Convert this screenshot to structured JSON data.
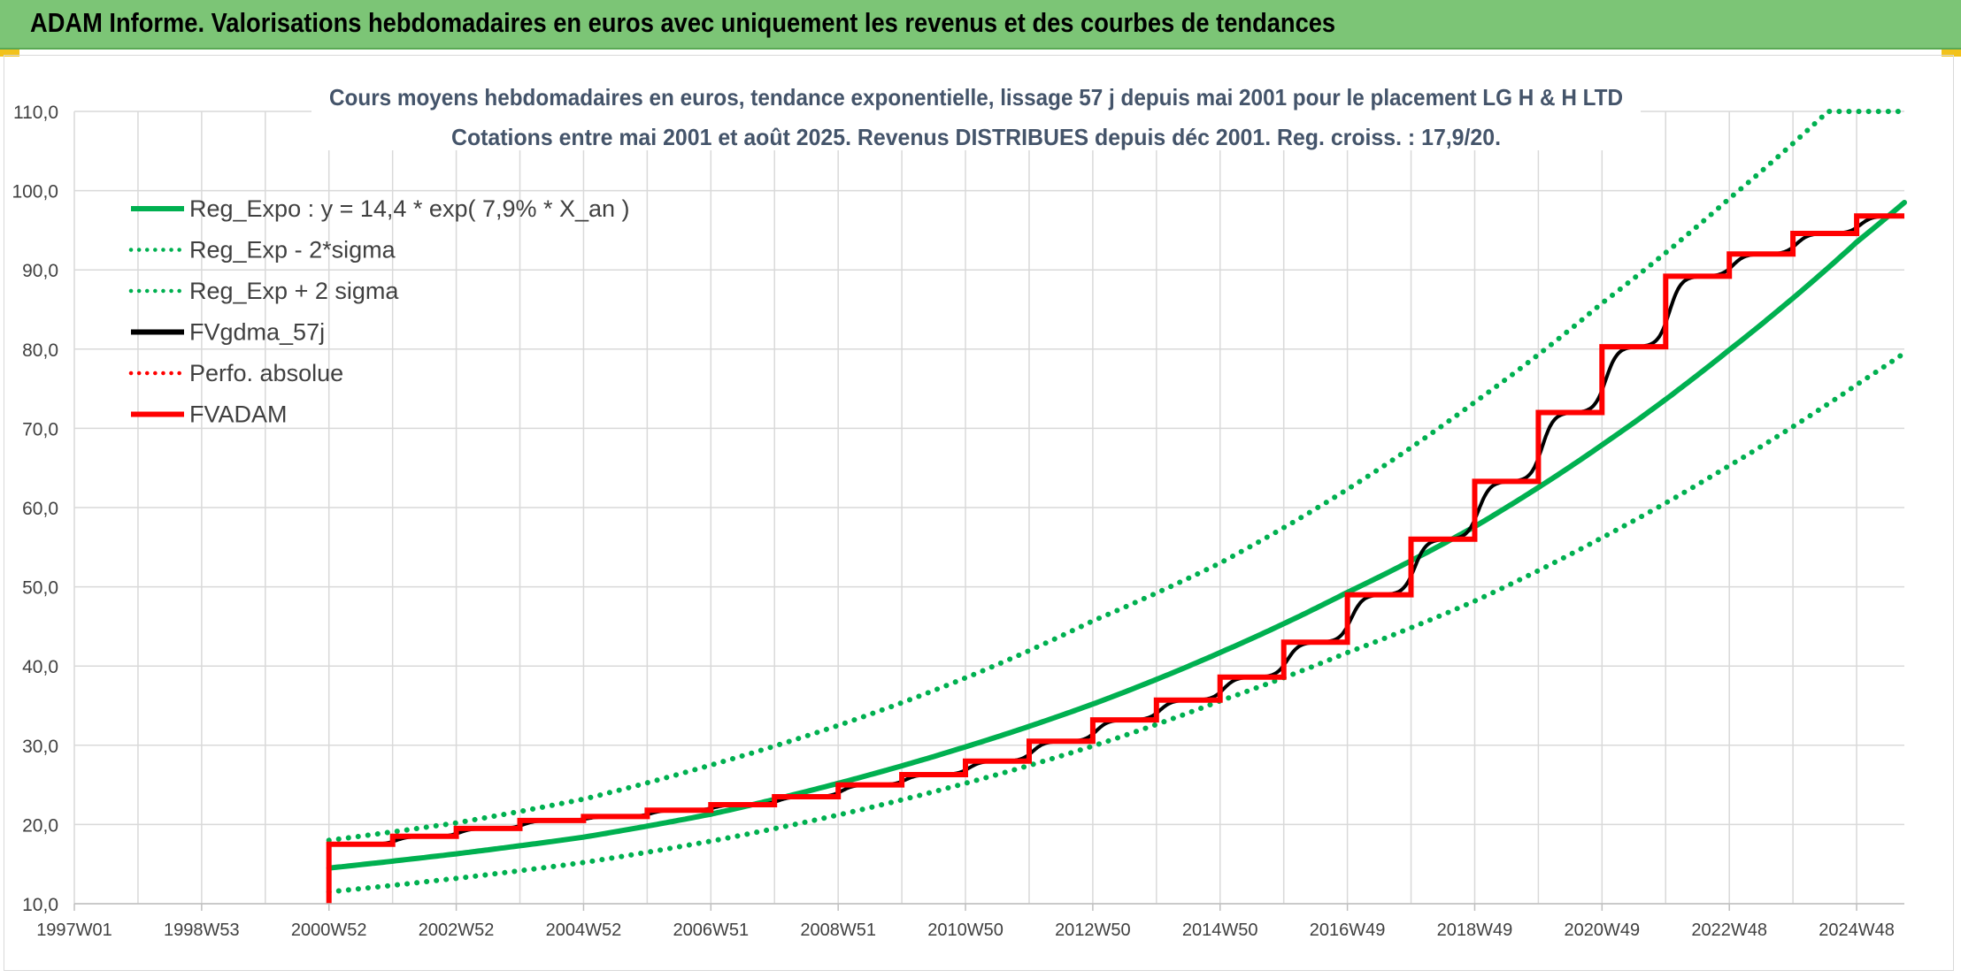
{
  "banner": {
    "title": "ADAM Informe. Valorisations hebdomadaires en euros avec uniquement les revenus et des courbes de tendances"
  },
  "colors": {
    "banner_bg": "#7cc576",
    "accent_corner": "#f2c21b",
    "trend_green": "#00b050",
    "fv_black": "#000000",
    "adam_red": "#ff0000"
  },
  "chart_data": {
    "type": "line",
    "title_line1": "Cours moyens hebdomadaires en euros, tendance exponentielle, lissage 57 j depuis mai 2001 pour le placement LG H & H LTD",
    "title_line2": "Cotations entre mai 2001 et août 2025. Revenus DISTRIBUES depuis déc 2001. Reg. croiss. : 17,9/20.",
    "xlabel": "",
    "ylabel": "",
    "x_domain": [
      1997.0,
      2025.75
    ],
    "ylim": [
      10,
      110
    ],
    "y_ticks": [
      "10,0",
      "20,0",
      "30,0",
      "40,0",
      "50,0",
      "60,0",
      "70,0",
      "80,0",
      "90,0",
      "100,0",
      "110,0"
    ],
    "x_ticks": [
      {
        "label": "1997W01",
        "x": 1997.0
      },
      {
        "label": "1998W53",
        "x": 1999.0
      },
      {
        "label": "2000W52",
        "x": 2001.0
      },
      {
        "label": "2002W52",
        "x": 2003.0
      },
      {
        "label": "2004W52",
        "x": 2005.0
      },
      {
        "label": "2006W51",
        "x": 2007.0
      },
      {
        "label": "2008W51",
        "x": 2009.0
      },
      {
        "label": "2010W50",
        "x": 2011.0
      },
      {
        "label": "2012W50",
        "x": 2013.0
      },
      {
        "label": "2014W50",
        "x": 2015.0
      },
      {
        "label": "2016W49",
        "x": 2017.0
      },
      {
        "label": "2018W49",
        "x": 2019.0
      },
      {
        "label": "2020W49",
        "x": 2021.0
      },
      {
        "label": "2022W48",
        "x": 2023.0
      },
      {
        "label": "2024W48",
        "x": 2025.0
      }
    ],
    "grid": "horizontal and vertical",
    "legend_position": "top-left",
    "series": [
      {
        "name": "Reg_Expo : y = 14,4 * exp( 7,9% *  X_an )",
        "style": "solid",
        "color": "#00b050",
        "points": [
          [
            2001.0,
            14.5
          ],
          [
            2003.0,
            16.3
          ],
          [
            2005.0,
            18.4
          ],
          [
            2007.0,
            21.3
          ],
          [
            2009.0,
            25.2
          ],
          [
            2011.0,
            29.8
          ],
          [
            2013.0,
            35.2
          ],
          [
            2015.0,
            41.7
          ],
          [
            2017.0,
            49.3
          ],
          [
            2019.0,
            57.6
          ],
          [
            2021.0,
            67.9
          ],
          [
            2023.0,
            79.9
          ],
          [
            2025.0,
            93.5
          ],
          [
            2025.75,
            98.5
          ]
        ]
      },
      {
        "name": "Reg_Exp - 2*sigma",
        "style": "dotted",
        "color": "#00b050",
        "points": [
          [
            2001.0,
            11.5
          ],
          [
            2003.0,
            13.2
          ],
          [
            2005.0,
            15.2
          ],
          [
            2007.0,
            17.9
          ],
          [
            2009.0,
            21.2
          ],
          [
            2011.0,
            25.2
          ],
          [
            2013.0,
            29.9
          ],
          [
            2015.0,
            35.6
          ],
          [
            2017.0,
            41.7
          ],
          [
            2019.0,
            48.2
          ],
          [
            2021.0,
            56.2
          ],
          [
            2023.0,
            65.3
          ],
          [
            2025.0,
            75.5
          ],
          [
            2025.75,
            79.5
          ]
        ]
      },
      {
        "name": "Reg_Exp + 2 sigma",
        "style": "dotted",
        "color": "#00b050",
        "points": [
          [
            2001.0,
            18.0
          ],
          [
            2003.0,
            20.2
          ],
          [
            2005.0,
            23.2
          ],
          [
            2007.0,
            27.5
          ],
          [
            2009.0,
            32.5
          ],
          [
            2011.0,
            38.5
          ],
          [
            2013.0,
            45.7
          ],
          [
            2015.0,
            53.0
          ],
          [
            2017.0,
            62.3
          ],
          [
            2019.0,
            73.3
          ],
          [
            2021.0,
            85.8
          ],
          [
            2023.0,
            99.0
          ],
          [
            2024.55,
            110.0
          ],
          [
            2025.75,
            110.0
          ]
        ]
      },
      {
        "name": "FVgdma_57j",
        "style": "solid",
        "color": "#000000",
        "smoothed_of": "FVADAM"
      },
      {
        "name": "Perfo. absolue",
        "style": "dotted",
        "color": "#ff0000",
        "visible_segment": false
      },
      {
        "name": "FVADAM",
        "style": "step",
        "color": "#ff0000",
        "start": [
          2001.0,
          10.0
        ],
        "steps": [
          [
            2001.0,
            17.5
          ],
          [
            2002.0,
            18.5
          ],
          [
            2003.0,
            19.5
          ],
          [
            2004.0,
            20.5
          ],
          [
            2005.0,
            21.0
          ],
          [
            2006.0,
            21.8
          ],
          [
            2007.0,
            22.5
          ],
          [
            2008.0,
            23.5
          ],
          [
            2009.0,
            25.0
          ],
          [
            2010.0,
            26.3
          ],
          [
            2011.0,
            28.0
          ],
          [
            2012.0,
            30.5
          ],
          [
            2013.0,
            33.2
          ],
          [
            2014.0,
            35.7
          ],
          [
            2015.0,
            38.6
          ],
          [
            2016.0,
            43.0
          ],
          [
            2017.0,
            49.0
          ],
          [
            2018.0,
            56.0
          ],
          [
            2019.0,
            63.3
          ],
          [
            2020.0,
            72.0
          ],
          [
            2021.0,
            80.3
          ],
          [
            2022.0,
            89.2
          ],
          [
            2023.0,
            92.0
          ],
          [
            2024.0,
            94.6
          ],
          [
            2025.0,
            96.8
          ]
        ],
        "end_x": 2025.75
      }
    ]
  }
}
